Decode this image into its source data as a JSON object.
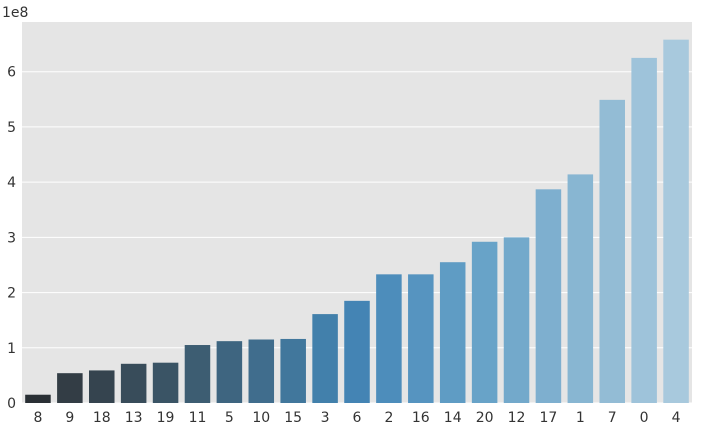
{
  "chart_data": {
    "type": "bar",
    "categories": [
      "8",
      "9",
      "18",
      "13",
      "19",
      "11",
      "5",
      "10",
      "15",
      "3",
      "6",
      "2",
      "16",
      "14",
      "20",
      "12",
      "17",
      "1",
      "7",
      "0",
      "4"
    ],
    "values": [
      15000000,
      54000000,
      59000000,
      71000000,
      73000000,
      105000000,
      112000000,
      115000000,
      116000000,
      161000000,
      185000000,
      233000000,
      233000000,
      255000000,
      292000000,
      300000000,
      387000000,
      414000000,
      549000000,
      625000000,
      658000000
    ],
    "colors": [
      "#2a3035",
      "#333d45",
      "#35444f",
      "#384c5a",
      "#3a5465",
      "#3d5d72",
      "#3e6580",
      "#406d8d",
      "#41779c",
      "#4280ab",
      "#4484b4",
      "#4d8dbb",
      "#5694c0",
      "#5f9cc4",
      "#68a3c8",
      "#73a9cb",
      "#7eafcf",
      "#88b6d2",
      "#93bcd5",
      "#9ec3da",
      "#a8c9dd"
    ],
    "title": "",
    "xlabel": "",
    "ylabel": "",
    "ylim": [
      0,
      690000000
    ],
    "yticks": [
      0,
      100000000,
      200000000,
      300000000,
      400000000,
      500000000,
      600000000
    ],
    "ytick_labels": [
      "0",
      "1",
      "2",
      "3",
      "4",
      "5",
      "6"
    ],
    "y_multiplier_label": "1e8",
    "grid": true,
    "plot_background": "#e5e5e5",
    "grid_color": "#ffffff",
    "legend": "none"
  }
}
